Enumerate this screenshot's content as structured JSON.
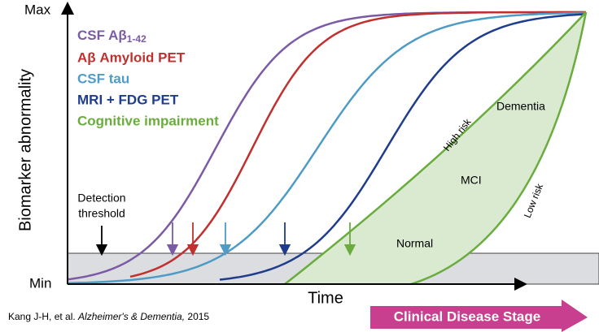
{
  "axes": {
    "y_max": "Max",
    "y_min": "Min",
    "y_label": "Biomarker abnormality",
    "x_label": "Time"
  },
  "legend": [
    {
      "label": "CSF Aβ",
      "subscript": "1-42"
    },
    {
      "label": "Aβ Amyloid PET"
    },
    {
      "label": "CSF tau"
    },
    {
      "label": "MRI + FDG PET"
    },
    {
      "label": "Cognitive impairment"
    }
  ],
  "annotations": {
    "detection_line1": "Detection",
    "detection_line2": "threshold",
    "dementia": "Dementia",
    "high_risk": "High risk",
    "mci": "MCI",
    "low_risk": "Low risk",
    "normal": "Normal"
  },
  "citation": {
    "authors": "Kang J-H, et al. ",
    "journal": "Alzheimer's & Dementia,",
    "year": " 2015"
  },
  "stage_arrow": "Clinical Disease Stage"
}
